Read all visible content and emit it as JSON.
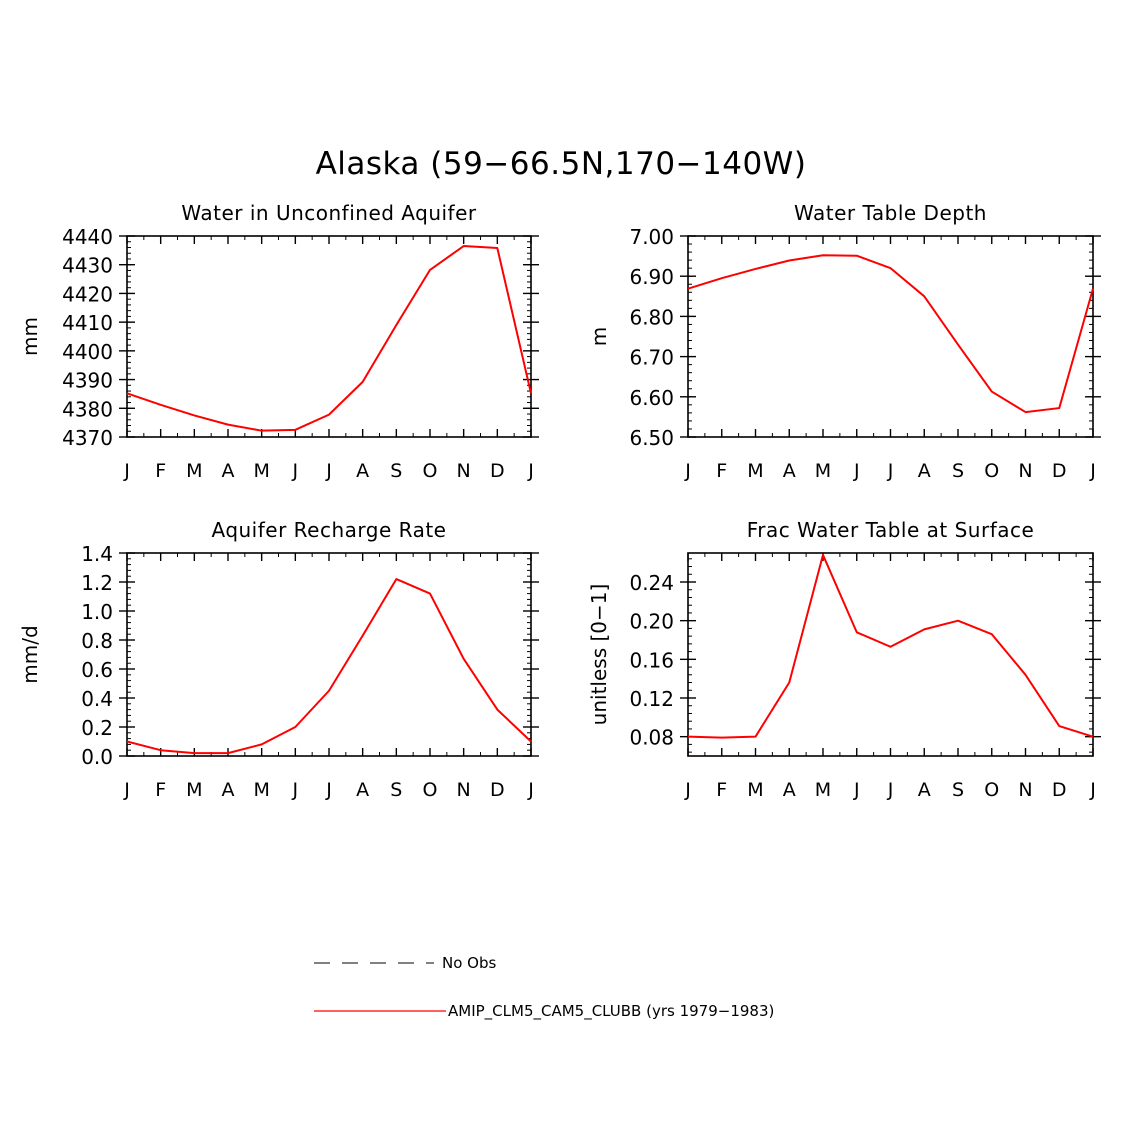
{
  "title": "Alaska (59−66.5N,170−140W)",
  "months": [
    "J",
    "F",
    "M",
    "A",
    "M",
    "J",
    "J",
    "A",
    "S",
    "O",
    "N",
    "D",
    "J"
  ],
  "series_color": "#ff0000",
  "chart_data": [
    {
      "type": "line",
      "title": "Water in Unconfined Aquifer",
      "ylabel": "mm",
      "ylim": [
        4370,
        4440
      ],
      "yticks": [
        4370,
        4380,
        4390,
        4400,
        4410,
        4420,
        4430,
        4440
      ],
      "ytick_labels": [
        "4370",
        "4380",
        "4390",
        "4400",
        "4410",
        "4420",
        "4430",
        "4440"
      ],
      "x": [
        "J",
        "F",
        "M",
        "A",
        "M",
        "J",
        "J",
        "A",
        "S",
        "O",
        "N",
        "D",
        "J"
      ],
      "series": [
        {
          "name": "AMIP_CLM5_CAM5_CLUBB (yrs 1979−1983)",
          "values": [
            4385.2,
            4381.2,
            4377.5,
            4374.3,
            4372.2,
            4372.5,
            4377.8,
            4389.2,
            4409.0,
            4428.2,
            4436.5,
            4435.8,
            4385.2
          ]
        }
      ]
    },
    {
      "type": "line",
      "title": "Water Table Depth",
      "ylabel": "m",
      "ylim": [
        6.5,
        7.0
      ],
      "yticks": [
        6.5,
        6.6,
        6.7,
        6.8,
        6.9,
        7.0
      ],
      "ytick_labels": [
        "6.50",
        "6.60",
        "6.70",
        "6.80",
        "6.90",
        "7.00"
      ],
      "x": [
        "J",
        "F",
        "M",
        "A",
        "M",
        "J",
        "J",
        "A",
        "S",
        "O",
        "N",
        "D",
        "J"
      ],
      "series": [
        {
          "name": "AMIP_CLM5_CAM5_CLUBB (yrs 1979−1983)",
          "values": [
            6.869,
            6.895,
            6.918,
            6.939,
            6.952,
            6.951,
            6.92,
            6.85,
            6.73,
            6.613,
            6.562,
            6.572,
            6.869
          ]
        }
      ]
    },
    {
      "type": "line",
      "title": "Aquifer Recharge Rate",
      "ylabel": "mm/d",
      "ylim": [
        0.0,
        1.4
      ],
      "yticks": [
        0.0,
        0.2,
        0.4,
        0.6,
        0.8,
        1.0,
        1.2,
        1.4
      ],
      "ytick_labels": [
        "0.0",
        "0.2",
        "0.4",
        "0.6",
        "0.8",
        "1.0",
        "1.2",
        "1.4"
      ],
      "x": [
        "J",
        "F",
        "M",
        "A",
        "M",
        "J",
        "J",
        "A",
        "S",
        "O",
        "N",
        "D",
        "J"
      ],
      "series": [
        {
          "name": "AMIP_CLM5_CAM5_CLUBB (yrs 1979−1983)",
          "values": [
            0.1,
            0.04,
            0.02,
            0.02,
            0.08,
            0.2,
            0.45,
            0.83,
            1.22,
            1.12,
            0.67,
            0.32,
            0.1
          ]
        }
      ]
    },
    {
      "type": "line",
      "title": "Frac Water Table at Surface",
      "ylabel": "unitless [0−1]",
      "ylim": [
        0.06,
        0.27
      ],
      "yticks": [
        0.08,
        0.12,
        0.16,
        0.2,
        0.24
      ],
      "ytick_labels": [
        "0.08",
        "0.12",
        "0.16",
        "0.20",
        "0.24"
      ],
      "x": [
        "J",
        "F",
        "M",
        "A",
        "M",
        "J",
        "J",
        "A",
        "S",
        "O",
        "N",
        "D",
        "J"
      ],
      "series": [
        {
          "name": "AMIP_CLM5_CAM5_CLUBB (yrs 1979−1983)",
          "values": [
            0.08,
            0.079,
            0.08,
            0.136,
            0.268,
            0.188,
            0.173,
            0.191,
            0.2,
            0.186,
            0.144,
            0.091,
            0.08
          ]
        }
      ]
    }
  ],
  "legend": {
    "obs_label": "No Obs",
    "model_label": "AMIP_CLM5_CAM5_CLUBB (yrs 1979−1983)"
  }
}
